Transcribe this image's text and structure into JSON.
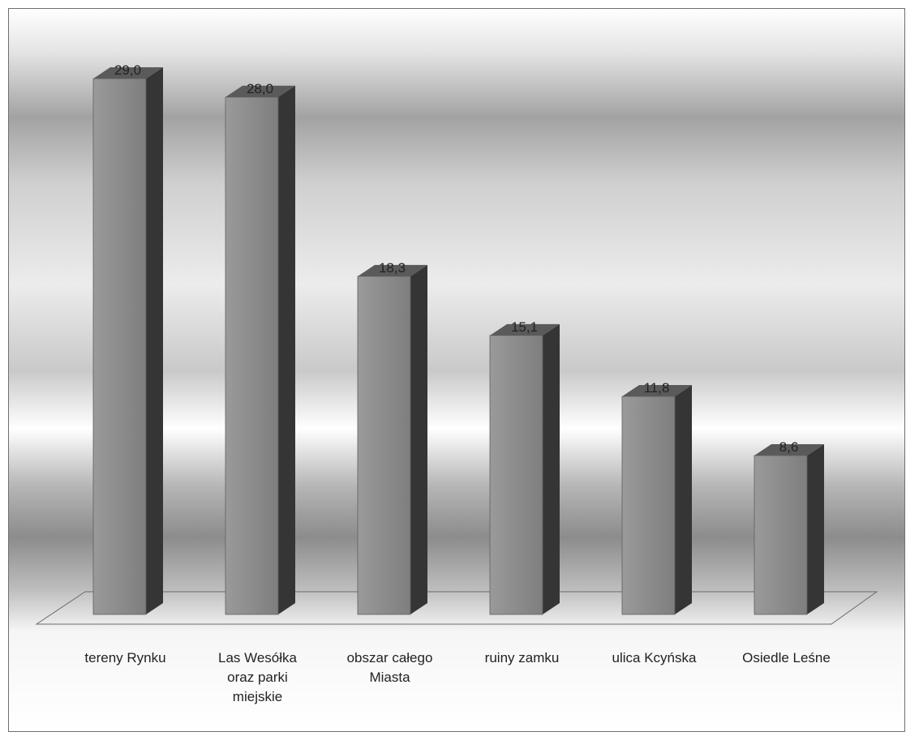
{
  "chart_data": {
    "type": "bar",
    "style": "3d-column",
    "title": "",
    "xlabel": "",
    "ylabel": "",
    "ylim": [
      0,
      29
    ],
    "grid": false,
    "legend": "none",
    "categories": [
      [
        "tereny Rynku"
      ],
      [
        "Las Wesółka",
        "oraz parki",
        "miejskie"
      ],
      [
        "obszar całego",
        "Miasta"
      ],
      [
        "ruiny zamku"
      ],
      [
        "ulica Kcyńska"
      ],
      [
        "Osiedle Leśne"
      ]
    ],
    "values": [
      29.0,
      28.0,
      18.3,
      15.1,
      11.8,
      8.6
    ],
    "value_labels": [
      "29,0",
      "28,0",
      "18,3",
      "15,1",
      "11,8",
      "8,6"
    ]
  },
  "colors": {
    "bar_front": "#8a8a8a",
    "bar_side": "#353535",
    "bar_top": "#5a5a5a",
    "floor_stroke": "#6a6a6a",
    "text": "#222222"
  }
}
